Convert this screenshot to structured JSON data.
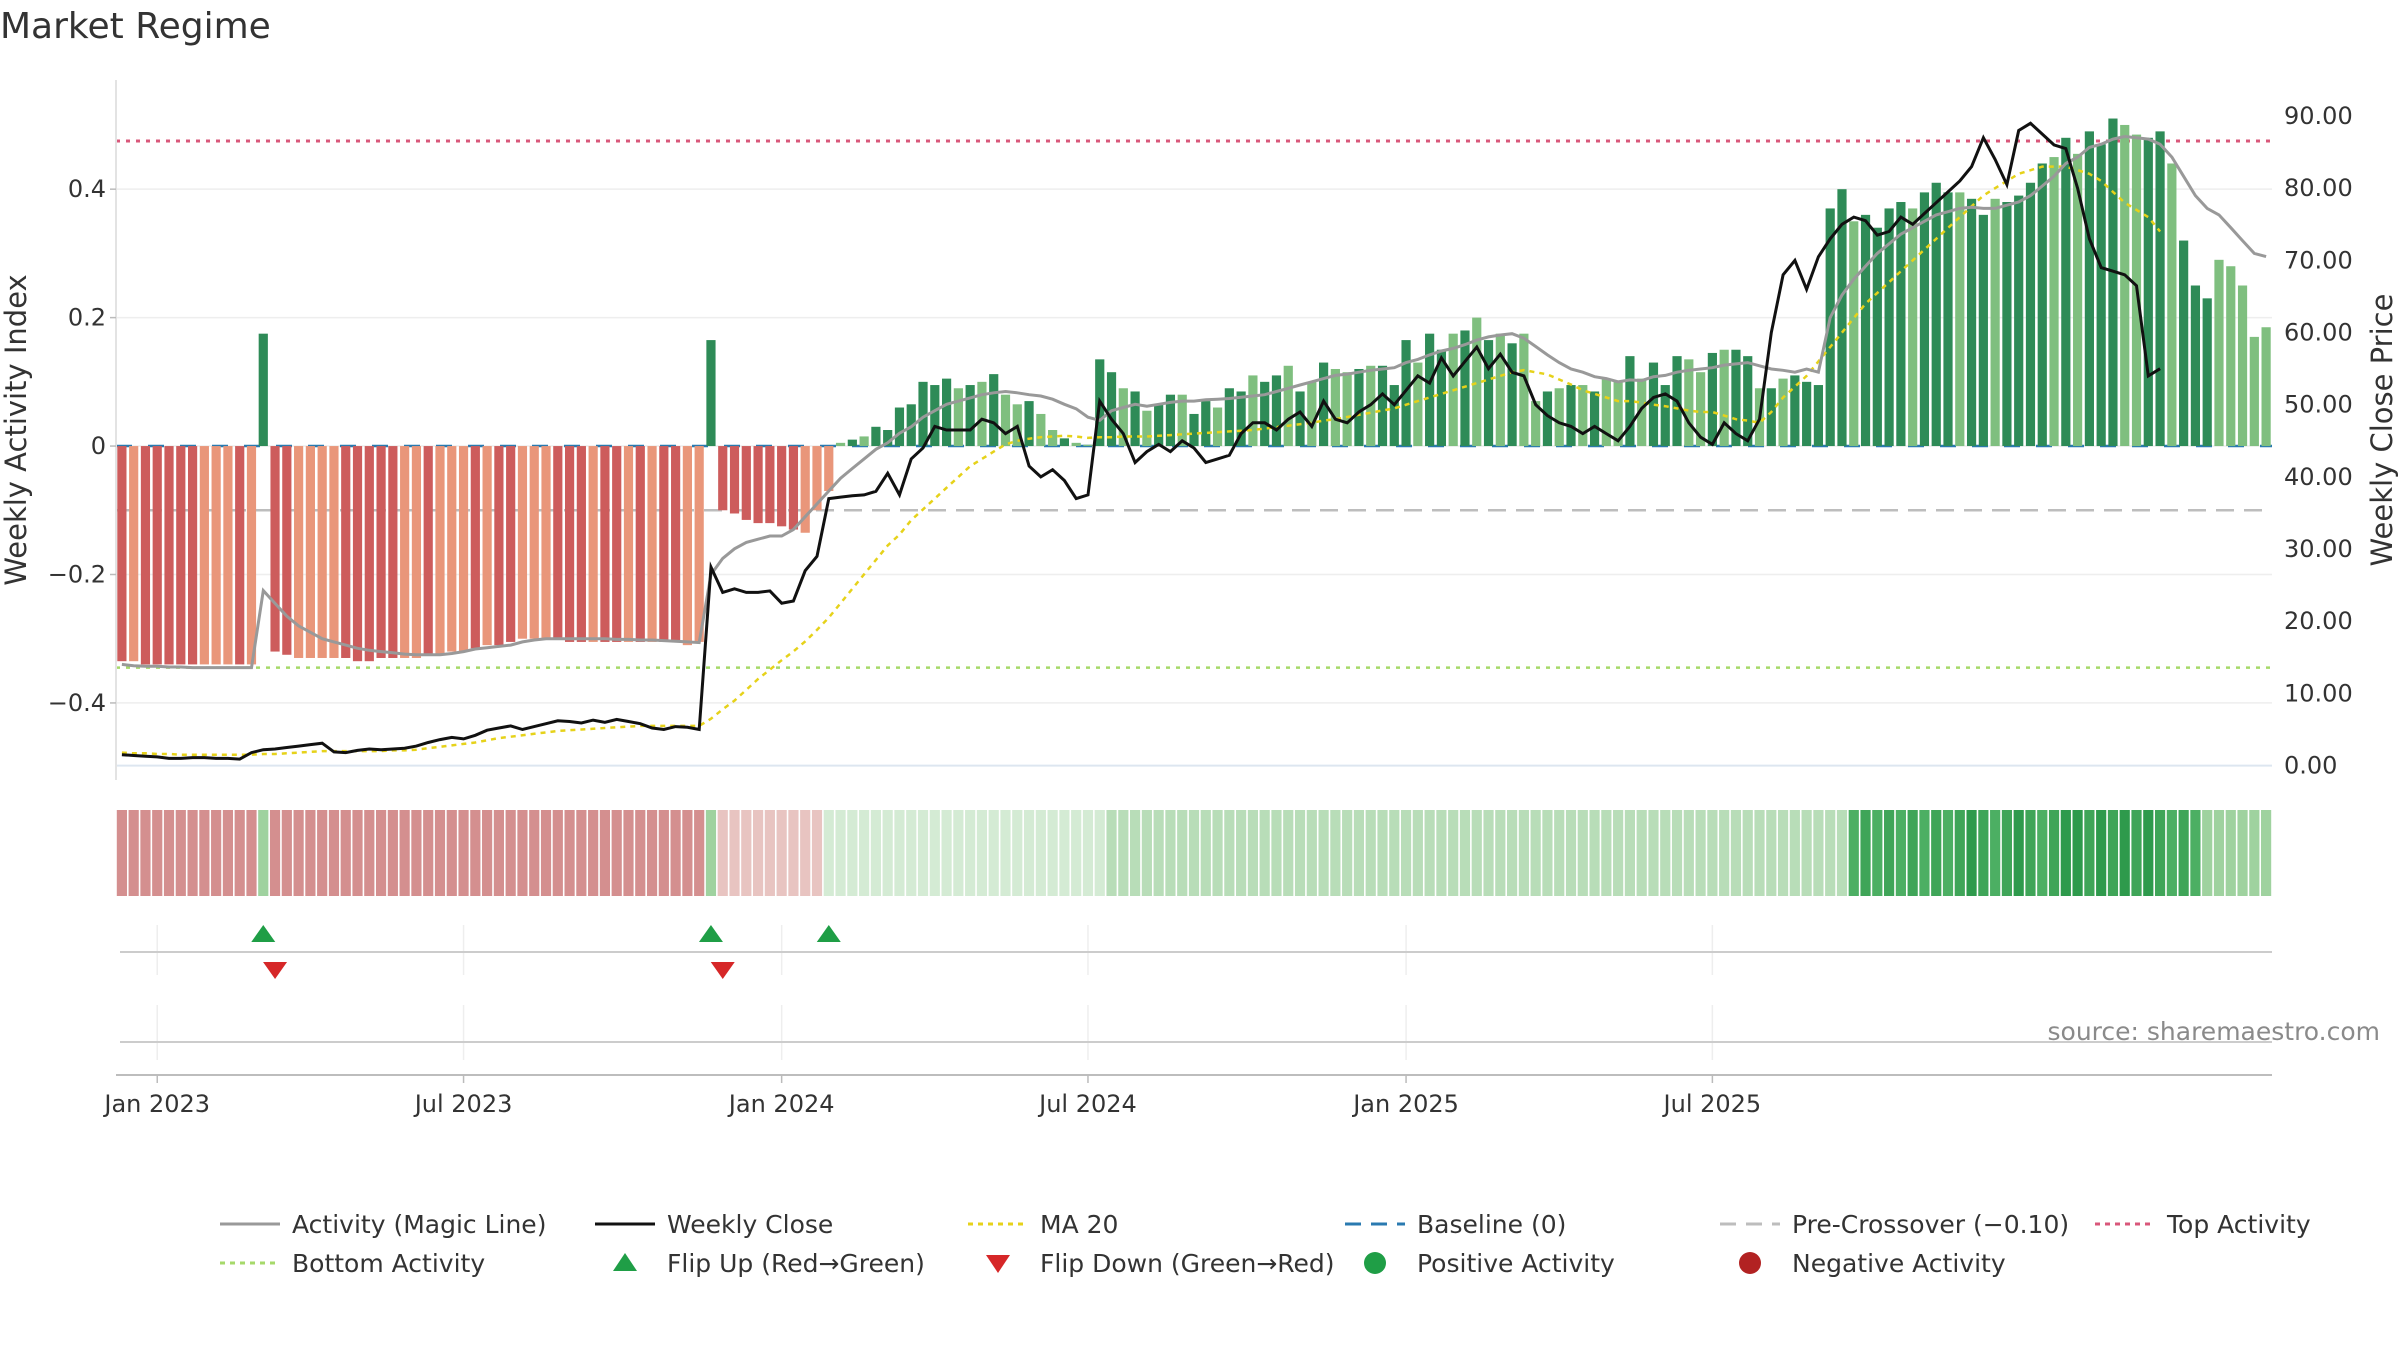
{
  "chart_data": {
    "type": "bar",
    "title": "Market Regime",
    "source": "source: sharemaestro.com",
    "ylabel_left": "Weekly Activity Index",
    "ylabel_right": "Weekly Close Price",
    "yticks_left": [
      "0.4",
      "0.2",
      "0",
      "−0.2",
      "−0.4"
    ],
    "yticks_left_values": [
      0.4,
      0.2,
      0,
      -0.2,
      -0.4
    ],
    "yticks_right": [
      "90.00",
      "80.00",
      "70.00",
      "60.00",
      "50.00",
      "40.00",
      "30.00",
      "20.00",
      "10.00",
      "0.00"
    ],
    "yticks_right_values": [
      90,
      80,
      70,
      60,
      50,
      40,
      30,
      20,
      10,
      0
    ],
    "xticks": [
      "Jan 2023",
      "Jul 2023",
      "Jan 2024",
      "Jul 2024",
      "Jan 2025",
      "Jul 2025"
    ],
    "xticks_week_index": [
      3,
      29,
      56,
      82,
      109,
      135
    ],
    "ylim_left": [
      -0.52,
      0.57
    ],
    "ylim_right": [
      -2,
      95
    ],
    "top_activity": 0.475,
    "bottom_activity": -0.345,
    "pre_crossover": -0.1,
    "baseline": 0,
    "colors": {
      "strong_positive": "#2e8b57",
      "weak_positive": "#7fbf7f",
      "strong_negative": "#cd5c5c",
      "weak_negative": "#e9967a",
      "magic_line": "#999999",
      "close": "#111111",
      "ma20": "#e6d21a",
      "baseline": "#2a7ab0",
      "pre_crossover": "#bdbdbd",
      "top": "#d9577a",
      "bottom": "#a6d96a",
      "flip_up": "#1f9e46",
      "flip_down": "#d62728",
      "positive_dot": "#1f9e46",
      "negative_dot": "#b22222"
    },
    "activity": [
      -0.335,
      -0.335,
      -0.34,
      -0.34,
      -0.34,
      -0.34,
      -0.34,
      -0.34,
      -0.34,
      -0.34,
      -0.34,
      -0.34,
      0.175,
      -0.32,
      -0.325,
      -0.33,
      -0.33,
      -0.33,
      -0.33,
      -0.33,
      -0.335,
      -0.335,
      -0.33,
      -0.33,
      -0.33,
      -0.33,
      -0.325,
      -0.325,
      -0.32,
      -0.32,
      -0.315,
      -0.31,
      -0.31,
      -0.305,
      -0.3,
      -0.3,
      -0.3,
      -0.3,
      -0.305,
      -0.305,
      -0.305,
      -0.305,
      -0.305,
      -0.305,
      -0.305,
      -0.305,
      -0.305,
      -0.305,
      -0.31,
      -0.305,
      0.165,
      -0.1,
      -0.105,
      -0.115,
      -0.12,
      -0.12,
      -0.125,
      -0.13,
      -0.135,
      -0.1,
      -0.07,
      0.005,
      0.01,
      0.015,
      0.03,
      0.025,
      0.06,
      0.065,
      0.1,
      0.095,
      0.105,
      0.09,
      0.095,
      0.1,
      0.112,
      0.08,
      0.065,
      0.07,
      0.05,
      0.025,
      0.012,
      0.005,
      0.002,
      0.135,
      0.115,
      0.09,
      0.085,
      0.055,
      0.065,
      0.08,
      0.08,
      0.05,
      0.07,
      0.06,
      0.09,
      0.085,
      0.11,
      0.1,
      0.11,
      0.125,
      0.085,
      0.1,
      0.13,
      0.12,
      0.115,
      0.12,
      0.125,
      0.125,
      0.095,
      0.165,
      0.13,
      0.175,
      0.15,
      0.175,
      0.18,
      0.2,
      0.165,
      0.175,
      0.16,
      0.175,
      0.07,
      0.085,
      0.09,
      0.095,
      0.095,
      0.085,
      0.105,
      0.1,
      0.14,
      0.105,
      0.13,
      0.095,
      0.14,
      0.135,
      0.115,
      0.145,
      0.15,
      0.15,
      0.14,
      0.09,
      0.09,
      0.105,
      0.11,
      0.1,
      0.095,
      0.37,
      0.4,
      0.35,
      0.36,
      0.34,
      0.37,
      0.38,
      0.37,
      0.395,
      0.41,
      0.395,
      0.395,
      0.385,
      0.36,
      0.385,
      0.38,
      0.39,
      0.41,
      0.44,
      0.45,
      0.48,
      0.455,
      0.49,
      0.47,
      0.51,
      0.5,
      0.485,
      0.48,
      0.49,
      0.44,
      0.32,
      0.25,
      0.23,
      0.29,
      0.28,
      0.25,
      0.17,
      0.185
    ],
    "activity_strength": [
      1,
      0,
      1,
      1,
      1,
      1,
      1,
      0,
      0,
      0,
      1,
      0,
      1,
      1,
      1,
      0,
      0,
      0,
      0,
      1,
      1,
      1,
      1,
      1,
      0,
      0,
      1,
      0,
      0,
      0,
      1,
      0,
      1,
      1,
      0,
      0,
      0,
      1,
      1,
      1,
      0,
      1,
      1,
      0,
      1,
      0,
      1,
      1,
      0,
      0,
      1,
      1,
      1,
      1,
      1,
      1,
      1,
      1,
      0,
      0,
      0,
      0,
      1,
      0,
      1,
      1,
      1,
      1,
      1,
      1,
      1,
      0,
      1,
      0,
      1,
      0,
      0,
      1,
      0,
      0,
      1,
      0,
      0,
      1,
      1,
      0,
      1,
      0,
      1,
      1,
      0,
      1,
      1,
      0,
      1,
      1,
      0,
      1,
      1,
      0,
      1,
      0,
      1,
      0,
      0,
      1,
      0,
      1,
      1,
      1,
      0,
      1,
      1,
      0,
      1,
      0,
      1,
      0,
      1,
      0,
      0,
      1,
      0,
      1,
      0,
      1,
      0,
      0,
      1,
      0,
      1,
      1,
      1,
      0,
      0,
      1,
      0,
      1,
      1,
      0,
      1,
      0,
      1,
      1,
      1,
      1,
      1,
      0,
      1,
      1,
      1,
      1,
      0,
      1,
      1,
      1,
      0,
      1,
      1,
      0,
      1,
      1,
      1,
      1,
      0,
      1,
      0,
      1,
      1,
      1,
      0,
      0,
      1,
      1,
      0,
      1,
      1,
      1,
      0,
      0,
      0,
      0,
      0,
      1
    ],
    "magic_line": [
      -0.34,
      -0.342,
      -0.343,
      -0.343,
      -0.344,
      -0.344,
      -0.345,
      -0.345,
      -0.345,
      -0.345,
      -0.345,
      -0.345,
      -0.225,
      -0.245,
      -0.265,
      -0.28,
      -0.29,
      -0.3,
      -0.305,
      -0.31,
      -0.315,
      -0.318,
      -0.32,
      -0.322,
      -0.324,
      -0.325,
      -0.325,
      -0.325,
      -0.323,
      -0.32,
      -0.316,
      -0.314,
      -0.312,
      -0.31,
      -0.305,
      -0.302,
      -0.3,
      -0.3,
      -0.3,
      -0.3,
      -0.3,
      -0.3,
      -0.301,
      -0.301,
      -0.302,
      -0.302,
      -0.303,
      -0.304,
      -0.305,
      -0.306,
      -0.2,
      -0.175,
      -0.16,
      -0.15,
      -0.145,
      -0.14,
      -0.14,
      -0.13,
      -0.11,
      -0.09,
      -0.07,
      -0.05,
      -0.035,
      -0.02,
      -0.005,
      0.005,
      0.02,
      0.03,
      0.045,
      0.055,
      0.065,
      0.07,
      0.075,
      0.08,
      0.083,
      0.085,
      0.083,
      0.08,
      0.078,
      0.073,
      0.065,
      0.058,
      0.045,
      0.04,
      0.055,
      0.06,
      0.065,
      0.062,
      0.065,
      0.068,
      0.07,
      0.07,
      0.072,
      0.073,
      0.074,
      0.076,
      0.078,
      0.08,
      0.085,
      0.09,
      0.095,
      0.1,
      0.105,
      0.11,
      0.112,
      0.115,
      0.118,
      0.12,
      0.122,
      0.13,
      0.135,
      0.142,
      0.148,
      0.152,
      0.158,
      0.165,
      0.17,
      0.173,
      0.175,
      0.168,
      0.155,
      0.142,
      0.13,
      0.12,
      0.115,
      0.108,
      0.105,
      0.1,
      0.103,
      0.102,
      0.108,
      0.11,
      0.115,
      0.118,
      0.12,
      0.122,
      0.126,
      0.128,
      0.13,
      0.125,
      0.12,
      0.118,
      0.115,
      0.12,
      0.115,
      0.2,
      0.235,
      0.26,
      0.28,
      0.3,
      0.315,
      0.33,
      0.34,
      0.35,
      0.36,
      0.365,
      0.37,
      0.372,
      0.37,
      0.37,
      0.375,
      0.38,
      0.39,
      0.405,
      0.42,
      0.44,
      0.45,
      0.465,
      0.47,
      0.478,
      0.482,
      0.48,
      0.478,
      0.47,
      0.45,
      0.42,
      0.39,
      0.37,
      0.36,
      0.34,
      0.32,
      0.3,
      0.295
    ],
    "weekly_close": [
      1.5,
      1.4,
      1.3,
      1.2,
      1.0,
      1.0,
      1.1,
      1.1,
      1.0,
      1.0,
      0.9,
      1.8,
      2.2,
      2.3,
      2.5,
      2.7,
      2.9,
      3.1,
      1.9,
      1.8,
      2.1,
      2.3,
      2.2,
      2.3,
      2.4,
      2.7,
      3.2,
      3.6,
      3.9,
      3.7,
      4.2,
      4.9,
      5.2,
      5.5,
      5.0,
      5.4,
      5.8,
      6.2,
      6.1,
      5.9,
      6.3,
      6.0,
      6.4,
      6.1,
      5.8,
      5.2,
      5.0,
      5.4,
      5.3,
      5.0,
      27.5,
      24.0,
      24.5,
      24.0,
      24.0,
      24.2,
      22.5,
      22.8,
      27.0,
      29.0,
      37.0,
      37.2,
      37.4,
      37.5,
      38.0,
      40.5,
      37.5,
      42.5,
      44.0,
      47.0,
      46.5,
      46.5,
      46.5,
      48.0,
      47.5,
      46.0,
      47.0,
      41.5,
      40.0,
      41.0,
      39.5,
      37.0,
      37.5,
      50.5,
      48.0,
      46.0,
      42.0,
      43.5,
      44.5,
      43.5,
      45.0,
      44.0,
      42.0,
      42.5,
      43.0,
      46.0,
      47.5,
      47.5,
      46.5,
      48.0,
      49.0,
      47.0,
      50.5,
      48.0,
      47.5,
      49.0,
      50.0,
      51.5,
      50.0,
      52.0,
      54.0,
      53.0,
      56.5,
      54.0,
      56.0,
      58.0,
      55.0,
      57.0,
      54.5,
      54.0,
      50.0,
      48.5,
      47.5,
      47.0,
      46.0,
      47.0,
      46.0,
      45.0,
      47.0,
      49.5,
      51.0,
      51.5,
      50.5,
      47.5,
      45.5,
      44.5,
      47.5,
      46.0,
      45.0,
      48.0,
      60.0,
      68.0,
      70.0,
      66.0,
      70.5,
      73.0,
      75.0,
      76.0,
      75.5,
      73.5,
      74.0,
      76.0,
      75.0,
      76.5,
      78.0,
      79.5,
      81.0,
      83.0,
      87.0,
      84.0,
      80.5,
      88.0,
      89.0,
      87.5,
      86.0,
      85.5,
      80.0,
      73.0,
      69.0,
      68.5,
      68.0,
      66.5,
      54.0,
      55.0
    ],
    "ma20": [
      1.8,
      1.7,
      1.7,
      1.6,
      1.6,
      1.5,
      1.5,
      1.5,
      1.5,
      1.5,
      1.5,
      1.5,
      1.6,
      1.6,
      1.7,
      1.8,
      1.9,
      2.0,
      2.0,
      2.0,
      2.0,
      2.0,
      2.0,
      2.1,
      2.1,
      2.2,
      2.4,
      2.6,
      2.8,
      3.0,
      3.2,
      3.5,
      3.8,
      4.0,
      4.2,
      4.4,
      4.6,
      4.8,
      4.9,
      5.0,
      5.1,
      5.2,
      5.3,
      5.4,
      5.5,
      5.5,
      5.5,
      5.5,
      5.5,
      5.5,
      6.5,
      7.8,
      9.0,
      10.5,
      12.0,
      13.3,
      14.6,
      15.8,
      17.2,
      18.8,
      20.5,
      22.5,
      24.5,
      26.5,
      28.5,
      30.5,
      32.0,
      34.0,
      35.5,
      37.0,
      38.5,
      40.0,
      41.5,
      42.5,
      43.5,
      44.5,
      45.0,
      45.3,
      45.5,
      45.6,
      45.7,
      45.6,
      45.4,
      45.5,
      45.5,
      45.6,
      45.6,
      45.6,
      45.7,
      45.8,
      45.9,
      46.0,
      46.1,
      46.2,
      46.3,
      46.4,
      46.5,
      46.7,
      46.9,
      47.1,
      47.3,
      47.5,
      47.8,
      48.0,
      48.3,
      48.6,
      48.9,
      49.2,
      49.5,
      50.0,
      50.5,
      51.0,
      51.5,
      52.0,
      52.5,
      53.0,
      53.5,
      54.0,
      54.5,
      54.8,
      54.5,
      54.2,
      53.5,
      52.8,
      52.0,
      51.5,
      51.0,
      50.5,
      50.5,
      50.3,
      50.0,
      49.8,
      49.5,
      49.2,
      49.0,
      49.0,
      48.5,
      48.0,
      47.8,
      47.5,
      49.0,
      51.0,
      52.5,
      54.0,
      56.0,
      58.0,
      60.0,
      62.0,
      64.0,
      65.5,
      67.0,
      68.5,
      70.0,
      71.5,
      73.0,
      74.5,
      76.0,
      77.5,
      79.0,
      80.0,
      81.0,
      82.0,
      82.5,
      83.0,
      83.0,
      83.0,
      82.5,
      82.0,
      81.0,
      79.5,
      78.0,
      77.0,
      76.0,
      74.0
    ],
    "strength_bins": [
      1,
      1,
      1,
      1,
      1,
      1,
      1,
      1,
      1,
      1,
      1,
      1,
      6,
      1,
      1,
      1,
      1,
      1,
      1,
      1,
      1,
      1,
      1,
      1,
      1,
      1,
      1,
      1,
      1,
      1,
      1,
      1,
      1,
      1,
      1,
      1,
      1,
      1,
      1,
      1,
      1,
      1,
      1,
      1,
      1,
      1,
      1,
      1,
      1,
      1,
      6,
      2,
      2,
      2,
      2,
      2,
      2,
      2,
      2,
      2,
      3,
      3,
      3,
      3,
      3,
      3,
      3,
      3,
      3,
      3,
      3,
      3,
      3,
      3,
      3,
      3,
      3,
      3,
      3,
      3,
      3,
      3,
      3,
      3,
      5,
      5,
      5,
      5,
      5,
      5,
      5,
      5,
      5,
      5,
      5,
      5,
      5,
      5,
      5,
      5,
      5,
      5,
      5,
      5,
      5,
      5,
      5,
      5,
      5,
      5,
      5,
      5,
      5,
      5,
      5,
      5,
      5,
      5,
      5,
      5,
      5,
      5,
      5,
      5,
      5,
      5,
      5,
      5,
      5,
      5,
      5,
      5,
      5,
      5,
      5,
      5,
      5,
      5,
      5,
      5,
      5,
      5,
      5,
      5,
      5,
      5,
      5,
      7,
      8,
      7,
      8,
      7,
      8,
      7,
      8,
      7,
      8,
      9,
      8,
      7,
      8,
      9,
      8,
      7,
      8,
      9,
      9,
      8,
      9,
      8,
      9,
      8,
      9,
      8,
      7,
      8,
      7,
      6,
      6,
      6,
      6,
      6,
      6
    ],
    "flip_up_weeks": [
      12,
      50,
      60
    ],
    "flip_down_weeks": [
      13,
      51
    ],
    "legend": [
      {
        "label": "Activity (Magic Line)",
        "style": "solid",
        "color": "#999999"
      },
      {
        "label": "Weekly Close",
        "style": "solid",
        "color": "#111111"
      },
      {
        "label": "MA 20",
        "style": "dotted",
        "color": "#e6d21a"
      },
      {
        "label": "Baseline (0)",
        "style": "dashed",
        "color": "#2a7ab0"
      },
      {
        "label": "Pre-Crossover (−0.10)",
        "style": "dashed",
        "color": "#bdbdbd"
      },
      {
        "label": "Top Activity",
        "style": "dotted",
        "color": "#d9577a"
      },
      {
        "label": "Bottom Activity",
        "style": "dotted",
        "color": "#a6d96a"
      },
      {
        "label": "Flip Up (Red→Green)",
        "style": "triangle-up",
        "color": "#1f9e46"
      },
      {
        "label": "Flip Down (Green→Red)",
        "style": "triangle-down",
        "color": "#d62728"
      },
      {
        "label": "Positive Activity",
        "style": "dot",
        "color": "#1f9e46"
      },
      {
        "label": "Negative Activity",
        "style": "dot",
        "color": "#b22222"
      }
    ]
  }
}
